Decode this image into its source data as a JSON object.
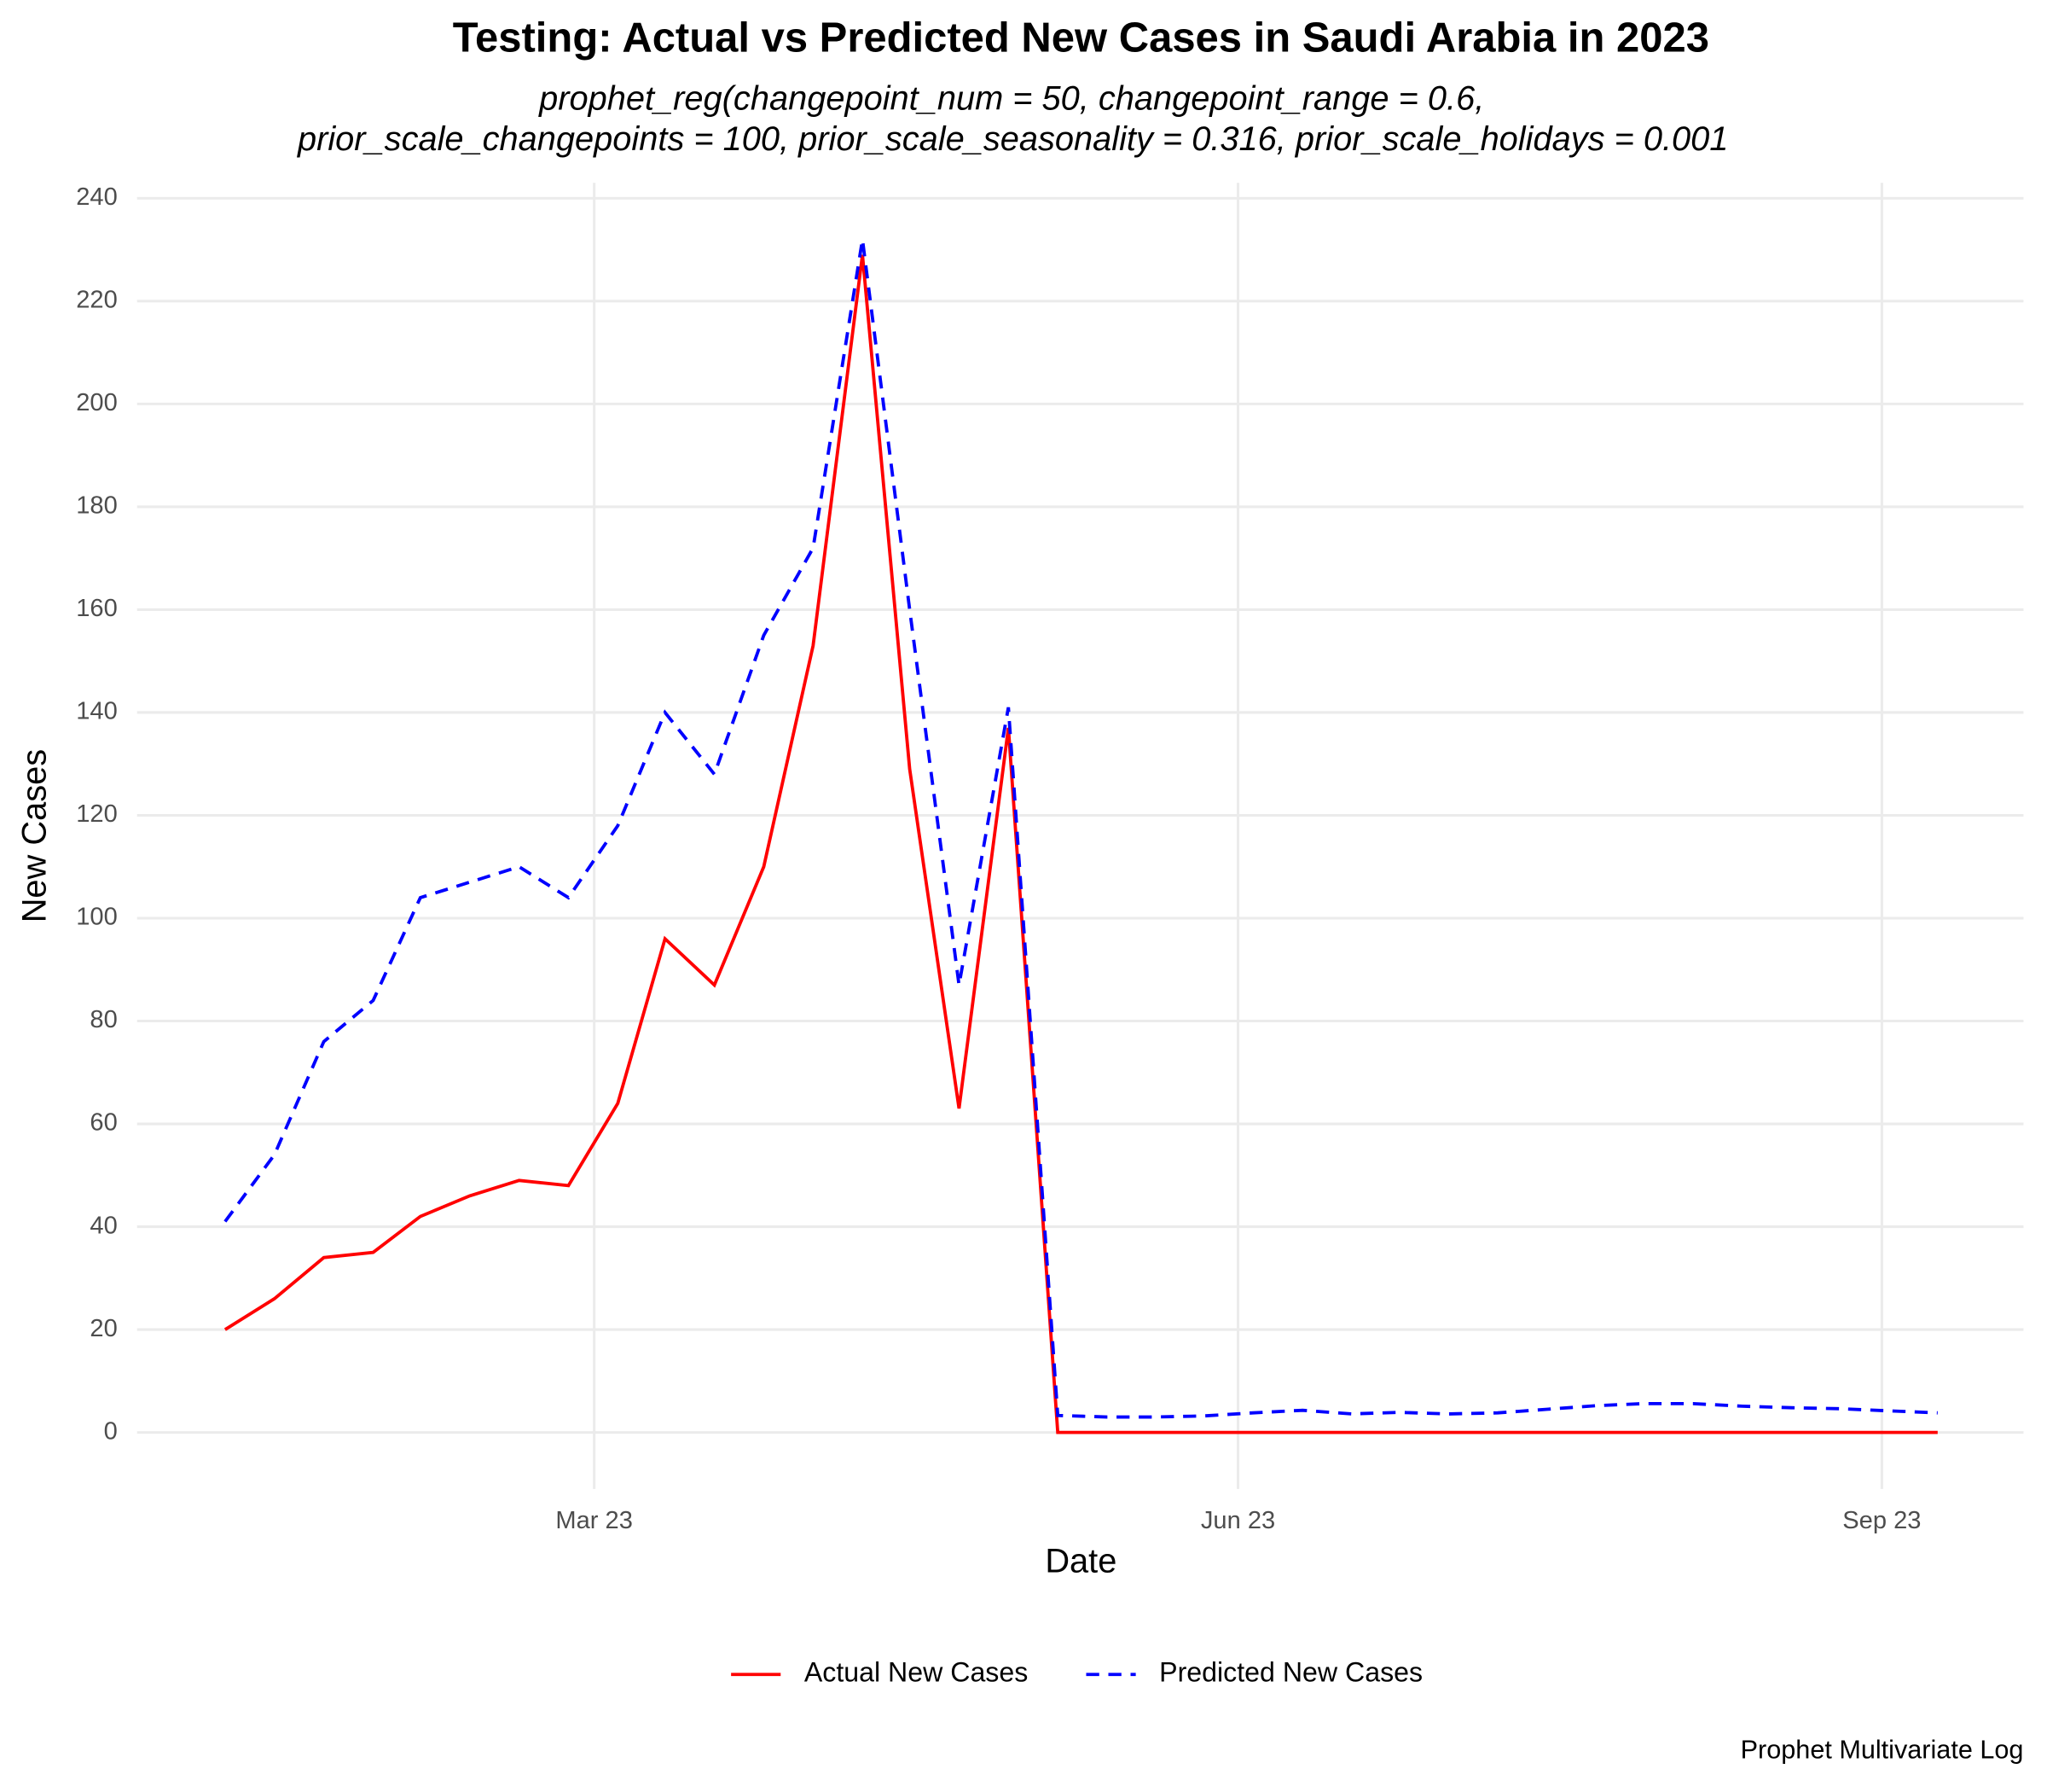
{
  "chart_data": {
    "type": "line",
    "title": "Testing: Actual vs Predicted New Cases in Saudi Arabia in 2023",
    "subtitle": [
      "prophet_reg(changepoint_num = 50, changepoint_range = 0.6,",
      "prior_scale_changepoints = 100, prior_scale_seasonality = 0.316, prior_scale_holidays = 0.001"
    ],
    "x_label": "Date",
    "y_label": "New Cases",
    "caption": "Prophet Multivariate Log",
    "x": [
      1.28,
      1.51,
      1.74,
      1.97,
      2.19,
      2.42,
      2.65,
      2.88,
      3.11,
      3.33,
      3.56,
      3.79,
      4.02,
      4.25,
      4.47,
      4.7,
      4.93,
      5.16,
      5.39,
      5.61,
      5.84,
      6.07,
      6.3,
      6.53,
      6.75,
      6.98,
      7.21,
      7.44,
      7.67,
      7.89,
      8.12,
      8.35,
      8.58,
      8.81,
      9.03,
      9.26
    ],
    "series": [
      {
        "name": "Actual New Cases",
        "color": "#ff0000",
        "linestyle": "solid",
        "values": [
          20,
          26,
          34,
          35,
          42,
          46,
          49,
          48,
          64,
          96,
          87,
          110,
          153,
          229,
          129,
          63,
          137,
          0,
          0,
          0,
          0,
          0,
          0,
          0,
          0,
          0,
          0,
          0,
          0,
          0,
          0,
          0,
          0,
          0,
          0,
          0
        ]
      },
      {
        "name": "Predicted New Cases",
        "color": "#0000ff",
        "linestyle": "dashed",
        "values": [
          41,
          54,
          76,
          84,
          104,
          107,
          110,
          104,
          118,
          140,
          128,
          155,
          172,
          232,
          160,
          87,
          141,
          3.3,
          3,
          3,
          3.2,
          3.8,
          4.3,
          3.6,
          3.9,
          3.6,
          3.8,
          4.5,
          5.2,
          5.6,
          5.6,
          5.1,
          4.8,
          4.6,
          4.2,
          3.8
        ]
      }
    ],
    "xlim": [
      0.87,
      9.66
    ],
    "xticks": [
      {
        "value": 3,
        "label": "Mar 23"
      },
      {
        "value": 6,
        "label": "Jun 23"
      },
      {
        "value": 9,
        "label": "Sep 23"
      }
    ],
    "ylim": [
      -11,
      243
    ],
    "yticks": [
      0,
      20,
      40,
      60,
      80,
      100,
      120,
      140,
      160,
      180,
      200,
      220,
      240
    ],
    "grid": true,
    "legend": "bottom"
  }
}
